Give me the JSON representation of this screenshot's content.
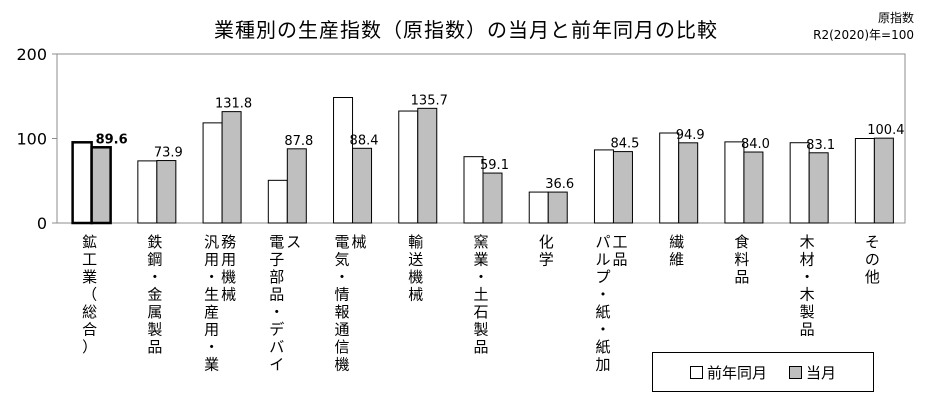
{
  "title": "業種別の生産指数（原指数）の当月と前年同月の比較",
  "unit_note": [
    "原指数",
    "R2(2020)年=100"
  ],
  "legend": [
    {
      "label": "前年同月",
      "color": "#ffffff"
    },
    {
      "label": "当月",
      "color": "#bfbfbf"
    }
  ],
  "chart_data": {
    "type": "bar",
    "title": "業種別の生産指数（原指数）の当月と前年同月の比較",
    "ylim": [
      0,
      200
    ],
    "yticks": [
      0,
      100,
      200
    ],
    "grid": false,
    "legend_position": "bottom-right",
    "categories": [
      "鉱工業（総合）",
      "鉄鋼・金属製品",
      "汎用・生産用・業務用機械",
      "電子部品・デバイス",
      "電気・情報通信機械",
      "輸送機械",
      "窯業・土石製品",
      "化学",
      "パルプ・紙・紙加工品",
      "繊維",
      "食料品",
      "木材・木製品",
      "その他"
    ],
    "series": [
      {
        "name": "前年同月",
        "color": "#ffffff",
        "values": [
          95.5,
          73.5,
          118.5,
          50.5,
          148.5,
          132.5,
          78.5,
          36.6,
          86.5,
          106.5,
          96.0,
          95.0,
          100.0
        ]
      },
      {
        "name": "当月",
        "color": "#bfbfbf",
        "values": [
          89.6,
          73.9,
          131.8,
          87.8,
          88.4,
          135.7,
          59.1,
          36.6,
          84.5,
          94.9,
          84.0,
          83.1,
          100.4
        ],
        "labels": [
          "89.6",
          "73.9",
          "131.8",
          "87.8",
          "88.4",
          "135.7",
          "59.1",
          "36.6",
          "84.5",
          "94.9",
          "84.0",
          "83.1",
          "100.4"
        ]
      }
    ]
  }
}
